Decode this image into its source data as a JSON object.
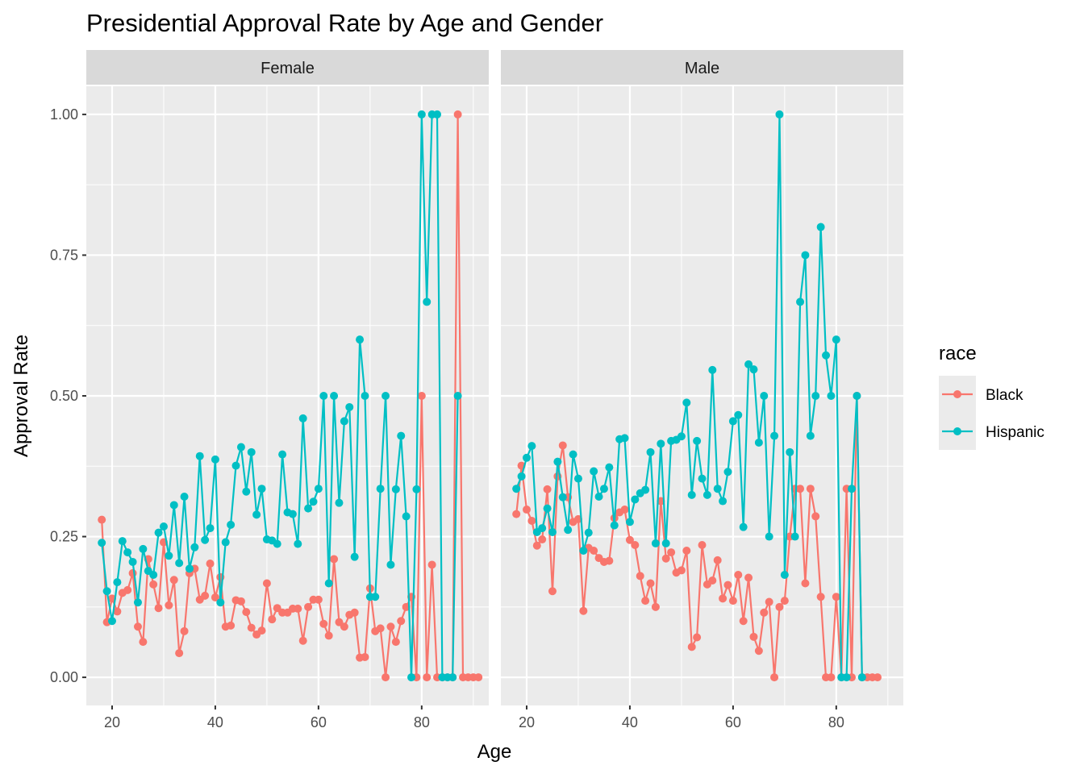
{
  "chart_data": {
    "type": "line",
    "title": "Presidential Approval Rate by Age and Gender",
    "xlabel": "Age",
    "ylabel": "Approval Rate",
    "xlim": [
      15,
      93
    ],
    "ylim": [
      -0.05,
      1.05
    ],
    "x_ticks": [
      20,
      40,
      60,
      80
    ],
    "x_tick_labels": [
      "20",
      "40",
      "60",
      "80"
    ],
    "y_ticks": [
      0,
      0.25,
      0.5,
      0.75,
      1.0
    ],
    "y_tick_labels": [
      "0.00",
      "0.25",
      "0.50",
      "0.75",
      "1.00"
    ],
    "grid": true,
    "legend": {
      "title": "race",
      "position": "right",
      "entries": [
        "Black",
        "Hispanic"
      ]
    },
    "colors": {
      "Black": "#F8766D",
      "Hispanic": "#00BFC4"
    },
    "panels": [
      {
        "label": "Female",
        "series": [
          {
            "name": "Black",
            "x": [
              18,
              19,
              20,
              21,
              22,
              23,
              24,
              25,
              26,
              27,
              28,
              29,
              30,
              31,
              32,
              33,
              34,
              35,
              36,
              37,
              38,
              39,
              40,
              41,
              42,
              43,
              44,
              45,
              46,
              47,
              48,
              49,
              50,
              51,
              52,
              53,
              54,
              55,
              56,
              57,
              58,
              59,
              60,
              61,
              62,
              63,
              64,
              65,
              66,
              67,
              68,
              69,
              70,
              71,
              72,
              73,
              74,
              75,
              76,
              77,
              78,
              79,
              80,
              81,
              82,
              83,
              84,
              85,
              86,
              87,
              88,
              89,
              90,
              91
            ],
            "values": [
              0.28,
              0.098,
              0.14,
              0.117,
              0.15,
              0.155,
              0.185,
              0.09,
              0.063,
              0.21,
              0.165,
              0.123,
              0.24,
              0.128,
              0.173,
              0.043,
              0.082,
              0.185,
              0.193,
              0.138,
              0.145,
              0.202,
              0.142,
              0.178,
              0.09,
              0.092,
              0.137,
              0.135,
              0.116,
              0.088,
              0.076,
              0.083,
              0.167,
              0.103,
              0.123,
              0.115,
              0.115,
              0.122,
              0.122,
              0.065,
              0.125,
              0.138,
              0.138,
              0.095,
              0.074,
              0.21,
              0.098,
              0.09,
              0.111,
              0.115,
              0.035,
              0.036,
              0.158,
              0.082,
              0.087,
              0.0,
              0.09,
              0.063,
              0.1,
              0.125,
              0.143,
              0.0,
              0.5,
              0.0,
              0.2,
              0.0,
              0.0,
              0.0,
              0.0,
              1.0,
              0.0,
              0.0,
              0.0,
              0.0
            ]
          },
          {
            "name": "Hispanic",
            "x": [
              18,
              19,
              20,
              21,
              22,
              23,
              24,
              25,
              26,
              27,
              28,
              29,
              30,
              31,
              32,
              33,
              34,
              35,
              36,
              37,
              38,
              39,
              40,
              41,
              42,
              43,
              44,
              45,
              46,
              47,
              48,
              49,
              50,
              51,
              52,
              53,
              54,
              55,
              56,
              57,
              58,
              59,
              60,
              61,
              62,
              63,
              64,
              65,
              66,
              67,
              68,
              69,
              70,
              71,
              72,
              73,
              74,
              75,
              76,
              77,
              78,
              79,
              80,
              81,
              82,
              83,
              84,
              85,
              86,
              87
            ],
            "values": [
              0.239,
              0.153,
              0.1,
              0.169,
              0.242,
              0.222,
              0.205,
              0.133,
              0.228,
              0.189,
              0.182,
              0.257,
              0.268,
              0.216,
              0.306,
              0.203,
              0.321,
              0.193,
              0.231,
              0.393,
              0.244,
              0.265,
              0.387,
              0.133,
              0.24,
              0.271,
              0.376,
              0.409,
              0.33,
              0.4,
              0.289,
              0.335,
              0.245,
              0.243,
              0.237,
              0.396,
              0.293,
              0.29,
              0.237,
              0.46,
              0.3,
              0.312,
              0.335,
              0.5,
              0.167,
              0.5,
              0.31,
              0.455,
              0.48,
              0.214,
              0.6,
              0.5,
              0.143,
              0.143,
              0.335,
              0.5,
              0.2,
              0.334,
              0.429,
              0.286,
              0.0,
              0.334,
              1.0,
              0.667,
              1.0,
              1.0,
              0.0,
              0.0,
              0.0,
              0.5
            ]
          }
        ]
      },
      {
        "label": "Male",
        "series": [
          {
            "name": "Black",
            "x": [
              18,
              19,
              20,
              21,
              22,
              23,
              24,
              25,
              26,
              27,
              28,
              29,
              30,
              31,
              32,
              33,
              34,
              35,
              36,
              37,
              38,
              39,
              40,
              41,
              42,
              43,
              44,
              45,
              46,
              47,
              48,
              49,
              50,
              51,
              52,
              53,
              54,
              55,
              56,
              57,
              58,
              59,
              60,
              61,
              62,
              63,
              64,
              65,
              66,
              67,
              68,
              69,
              70,
              71,
              72,
              73,
              74,
              75,
              76,
              77,
              78,
              79,
              80,
              81,
              82,
              83,
              84,
              85,
              86,
              87,
              88
            ],
            "values": [
              0.29,
              0.376,
              0.298,
              0.278,
              0.234,
              0.245,
              0.334,
              0.153,
              0.357,
              0.412,
              0.32,
              0.276,
              0.281,
              0.118,
              0.23,
              0.225,
              0.212,
              0.205,
              0.207,
              0.283,
              0.293,
              0.298,
              0.244,
              0.235,
              0.18,
              0.136,
              0.167,
              0.125,
              0.313,
              0.211,
              0.222,
              0.186,
              0.19,
              0.225,
              0.054,
              0.071,
              0.235,
              0.165,
              0.172,
              0.208,
              0.14,
              0.164,
              0.136,
              0.182,
              0.1,
              0.177,
              0.072,
              0.047,
              0.115,
              0.134,
              0.0,
              0.125,
              0.136,
              0.25,
              0.335,
              0.335,
              0.167,
              0.335,
              0.286,
              0.143,
              0.0,
              0.0,
              0.143,
              0.0,
              0.335,
              0.0,
              0.5,
              0.0,
              0.0,
              0.0,
              0.0
            ]
          },
          {
            "name": "Hispanic",
            "x": [
              18,
              19,
              20,
              21,
              22,
              23,
              24,
              25,
              26,
              27,
              28,
              29,
              30,
              31,
              32,
              33,
              34,
              35,
              36,
              37,
              38,
              39,
              40,
              41,
              42,
              43,
              44,
              45,
              46,
              47,
              48,
              49,
              50,
              51,
              52,
              53,
              54,
              55,
              56,
              57,
              58,
              59,
              60,
              61,
              62,
              63,
              64,
              65,
              66,
              67,
              68,
              69,
              70,
              71,
              72,
              73,
              74,
              75,
              76,
              77,
              78,
              79,
              80,
              81,
              82,
              83,
              84,
              85
            ],
            "values": [
              0.335,
              0.357,
              0.39,
              0.411,
              0.258,
              0.265,
              0.3,
              0.258,
              0.383,
              0.32,
              0.262,
              0.396,
              0.353,
              0.225,
              0.257,
              0.366,
              0.321,
              0.335,
              0.373,
              0.27,
              0.423,
              0.425,
              0.276,
              0.316,
              0.327,
              0.333,
              0.4,
              0.238,
              0.415,
              0.238,
              0.42,
              0.422,
              0.428,
              0.488,
              0.324,
              0.42,
              0.353,
              0.324,
              0.546,
              0.335,
              0.313,
              0.365,
              0.455,
              0.466,
              0.267,
              0.556,
              0.547,
              0.417,
              0.5,
              0.25,
              0.429,
              1.0,
              0.182,
              0.4,
              0.25,
              0.667,
              0.75,
              0.429,
              0.5,
              0.8,
              0.572,
              0.5,
              0.6,
              0.0,
              0.0,
              0.335,
              0.5,
              0.0
            ]
          }
        ]
      }
    ]
  }
}
